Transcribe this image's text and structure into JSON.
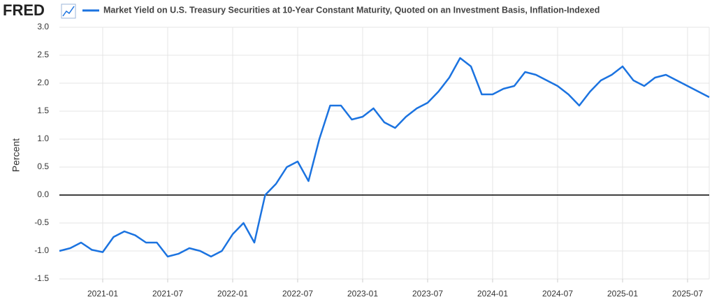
{
  "brand": "FRED",
  "chart_data": {
    "type": "line",
    "title": "Market Yield on U.S. Treasury Securities at 10-Year Constant Maturity, Quoted on an Investment Basis, Inflation-Indexed",
    "y_label": "Percent",
    "x": [
      "2020-09",
      "2020-10",
      "2020-11",
      "2020-12",
      "2021-01",
      "2021-02",
      "2021-03",
      "2021-04",
      "2021-05",
      "2021-06",
      "2021-07",
      "2021-08",
      "2021-09",
      "2021-10",
      "2021-11",
      "2021-12",
      "2022-01",
      "2022-02",
      "2022-03",
      "2022-04",
      "2022-05",
      "2022-06",
      "2022-07",
      "2022-08",
      "2022-09",
      "2022-10",
      "2022-11",
      "2022-12",
      "2023-01",
      "2023-02",
      "2023-03",
      "2023-04",
      "2023-05",
      "2023-06",
      "2023-07",
      "2023-08",
      "2023-09",
      "2023-10",
      "2023-11",
      "2023-12",
      "2024-01",
      "2024-02",
      "2024-03",
      "2024-04",
      "2024-05",
      "2024-06",
      "2024-07",
      "2024-08",
      "2024-09",
      "2024-10",
      "2024-11",
      "2024-12",
      "2025-01",
      "2025-02",
      "2025-03",
      "2025-04",
      "2025-05",
      "2025-06",
      "2025-07",
      "2025-08",
      "2025-09"
    ],
    "series": [
      {
        "name": "Market Yield on U.S. Treasury Securities at 10-Year Constant Maturity, Quoted on an Investment Basis, Inflation-Indexed",
        "color": "#1b73e0",
        "values": [
          -1.0,
          -0.95,
          -0.85,
          -0.98,
          -1.02,
          -0.75,
          -0.65,
          -0.72,
          -0.85,
          -0.85,
          -1.1,
          -1.05,
          -0.95,
          -1.0,
          -1.1,
          -1.0,
          -0.7,
          -0.5,
          -0.85,
          0.0,
          0.2,
          0.5,
          0.6,
          0.25,
          1.0,
          1.6,
          1.6,
          1.35,
          1.4,
          1.55,
          1.3,
          1.2,
          1.4,
          1.55,
          1.65,
          1.85,
          2.1,
          2.45,
          2.3,
          1.8,
          1.8,
          1.9,
          1.95,
          2.2,
          2.15,
          2.05,
          1.95,
          1.8,
          1.6,
          1.85,
          2.05,
          2.15,
          2.3,
          2.05,
          1.95,
          2.1,
          2.15,
          2.05,
          1.95,
          1.85,
          1.75
        ]
      }
    ],
    "xlim": [
      "2020-09",
      "2025-09"
    ],
    "xticks": [
      "2021-01",
      "2021-07",
      "2022-01",
      "2022-07",
      "2023-01",
      "2023-07",
      "2024-01",
      "2024-07",
      "2025-01",
      "2025-07"
    ],
    "ylim": [
      -1.5,
      3.0
    ],
    "yticks": [
      {
        "value": 3.0,
        "label": "3.0"
      },
      2.5,
      {
        "value": 2.0,
        "label": "2.0"
      },
      1.5,
      {
        "value": 1.0,
        "label": "1.0"
      },
      0.5,
      {
        "value": 0.0,
        "label": "0.0"
      },
      -0.5,
      {
        "value": -1.0,
        "label": "-1.0"
      },
      -1.5
    ],
    "grid": true,
    "zero_line": true
  }
}
